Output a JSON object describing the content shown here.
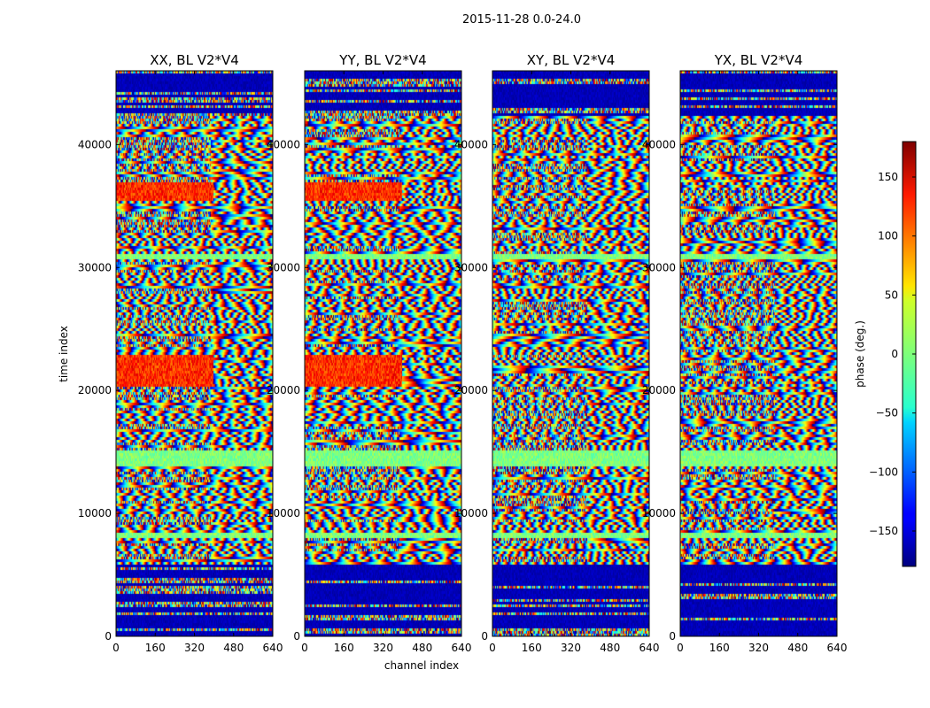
{
  "figure": {
    "suptitle": "2015-11-28 0.0-24.0",
    "xlabel": "channel index",
    "ylabel": "time index",
    "colorbar_label": "phase (deg.)"
  },
  "chart_data": [
    {
      "type": "heatmap",
      "title": "XX, BL V2*V4",
      "x_ticks": [
        "0",
        "160",
        "320",
        "480",
        "640"
      ],
      "y_ticks": [
        "0",
        "10000",
        "20000",
        "30000",
        "40000"
      ],
      "xlim": [
        0,
        640
      ],
      "ylim": [
        0,
        46000
      ],
      "value_range": [
        -180,
        180
      ],
      "value_unit": "deg",
      "colormap": "jet"
    },
    {
      "type": "heatmap",
      "title": "YY, BL V2*V4",
      "x_ticks": [
        "0",
        "160",
        "320",
        "480",
        "640"
      ],
      "y_ticks": [
        "0",
        "10000",
        "20000",
        "30000",
        "40000"
      ],
      "xlim": [
        0,
        640
      ],
      "ylim": [
        0,
        46000
      ],
      "value_range": [
        -180,
        180
      ],
      "value_unit": "deg",
      "colormap": "jet"
    },
    {
      "type": "heatmap",
      "title": "XY, BL V2*V4",
      "x_ticks": [
        "0",
        "160",
        "320",
        "480",
        "640"
      ],
      "y_ticks": [
        "0",
        "10000",
        "20000",
        "30000",
        "40000"
      ],
      "xlim": [
        0,
        640
      ],
      "ylim": [
        0,
        46000
      ],
      "value_range": [
        -180,
        180
      ],
      "value_unit": "deg",
      "colormap": "jet"
    },
    {
      "type": "heatmap",
      "title": "YX, BL V2*V4",
      "x_ticks": [
        "0",
        "160",
        "320",
        "480",
        "640"
      ],
      "y_ticks": [
        "0",
        "10000",
        "20000",
        "30000",
        "40000"
      ],
      "xlim": [
        0,
        640
      ],
      "ylim": [
        0,
        46000
      ],
      "value_range": [
        -180,
        180
      ],
      "value_unit": "deg",
      "colormap": "jet"
    }
  ],
  "colorbar": {
    "ticks": [
      "150",
      "100",
      "50",
      "0",
      "−50",
      "−100",
      "−150"
    ],
    "tick_values": [
      150,
      100,
      50,
      0,
      -50,
      -100,
      -150
    ],
    "range": [
      -180,
      180
    ],
    "colormap": "jet"
  }
}
